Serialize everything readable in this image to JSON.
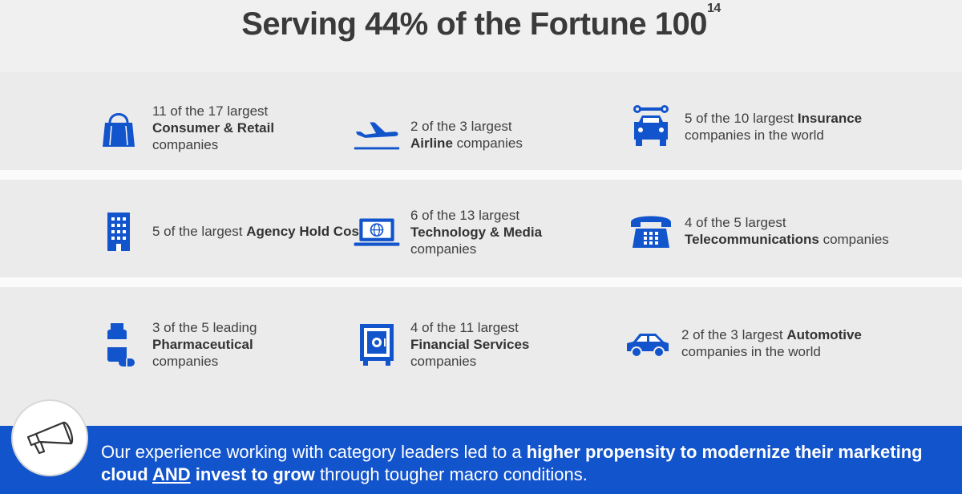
{
  "title": {
    "text": "Serving 44% of the Fortune 100",
    "sup": "14"
  },
  "accent_color": "#1254cc",
  "rows": [
    [
      {
        "icon": "shopping-bag-icon",
        "pre": "11 of the 17 largest",
        "bold": "Consumer & Retail",
        "post": "companies"
      },
      {
        "icon": "airplane-icon",
        "pre": "2 of the 3 largest",
        "bold": "Airline",
        "post": " companies"
      },
      {
        "icon": "car-repair-icon",
        "pre": "5 of the 10 largest ",
        "bold": "Insurance",
        "post": "companies in the world"
      }
    ],
    [
      {
        "icon": "office-building-icon",
        "pre": "5 of the largest ",
        "bold": "Agency Hold Cos",
        "post": ""
      },
      {
        "icon": "laptop-globe-icon",
        "pre": "6 of the 13 largest",
        "bold": "Technology & Media",
        "post": "companies"
      },
      {
        "icon": "telephone-icon",
        "pre": "4 of the 5 largest",
        "bold": "Telecommunications",
        "post": " companies"
      }
    ],
    [
      {
        "icon": "pill-bottle-icon",
        "pre": "3 of the 5 leading",
        "bold": "Pharmaceutical",
        "post": "companies"
      },
      {
        "icon": "safe-icon",
        "pre": "4 of the 11 largest",
        "bold": "Financial Services",
        "post": "companies"
      },
      {
        "icon": "car-icon",
        "pre": "2 of the 3 largest ",
        "bold": "Automotive",
        "post": "companies in the world"
      }
    ]
  ],
  "footer": {
    "part1": "Our experience working with category leaders led to a ",
    "bold1": "higher propensity to modernize their marketing cloud ",
    "underline": "AND",
    "bold2": " invest to grow",
    "part2": " through tougher macro conditions."
  }
}
